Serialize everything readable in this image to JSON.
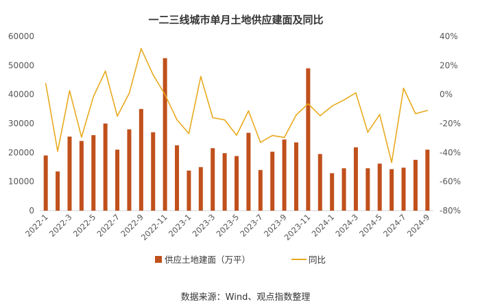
{
  "chart_data": {
    "type": "bar",
    "title": "一二三线城市单月土地供应建面及同比",
    "categories": [
      "2022-1",
      "2022-2",
      "2022-3",
      "2022-4",
      "2022-5",
      "2022-6",
      "2022-7",
      "2022-8",
      "2022-9",
      "2022-10",
      "2022-11",
      "2022-12",
      "2023-1",
      "2023-2",
      "2023-3",
      "2023-4",
      "2023-5",
      "2023-6",
      "2023-7",
      "2023-8",
      "2023-9",
      "2023-10",
      "2023-11",
      "2023-12",
      "2024-1",
      "2024-2",
      "2024-3",
      "2024-4",
      "2024-5",
      "2024-6",
      "2024-7",
      "2024-8",
      "2024-9"
    ],
    "x_tick_labels": [
      "2022-1",
      "2022-3",
      "2022-5",
      "2022-7",
      "2022-9",
      "2022-11",
      "2023-1",
      "2023-3",
      "2023-5",
      "2023-7",
      "2023-9",
      "2023-11",
      "2024-1",
      "2024-3",
      "2024-5",
      "2024-7",
      "2024-9"
    ],
    "series": [
      {
        "name": "供应土地建面（万平）",
        "type": "bar",
        "axis": "left",
        "color": "#C0501C",
        "values": [
          19000,
          13500,
          25500,
          24000,
          26000,
          30000,
          21000,
          28000,
          35000,
          27000,
          52500,
          22500,
          13800,
          15000,
          21500,
          19800,
          18800,
          26800,
          14000,
          20300,
          24500,
          23500,
          49000,
          19500,
          12900,
          14600,
          21800,
          14600,
          16200,
          14300,
          14800,
          17500,
          21000
        ]
      },
      {
        "name": "同比",
        "type": "line",
        "axis": "right",
        "color": "#E8A91C",
        "values": [
          7.6,
          -39.1,
          2.6,
          -29.4,
          -1.4,
          16.1,
          -14.9,
          0.9,
          31.6,
          13.6,
          -0.1,
          -17.4,
          -26.9,
          12.4,
          -16.0,
          -17.5,
          -28.1,
          -11.3,
          -33.0,
          -28.2,
          -29.6,
          -14.1,
          -6.4,
          -14.6,
          -8.0,
          -3.8,
          1.1,
          -26.0,
          -13.8,
          -46.8,
          4.3,
          -13.2,
          -11.0
        ]
      }
    ],
    "ylim_left": [
      0,
      60000
    ],
    "yticks_left": [
      "0",
      "10000",
      "20000",
      "30000",
      "40000",
      "50000",
      "60000"
    ],
    "ylim_right": [
      -80,
      40
    ],
    "yticks_right": [
      "-80%",
      "-60%",
      "-40%",
      "-20%",
      "0%",
      "20%",
      "40%"
    ],
    "legend_position": "bottom",
    "grid": false
  },
  "legend": {
    "bar_label": "供应土地建面（万平）",
    "line_label": "同比"
  },
  "source_text": "数据来源：Wind、观点指数整理"
}
